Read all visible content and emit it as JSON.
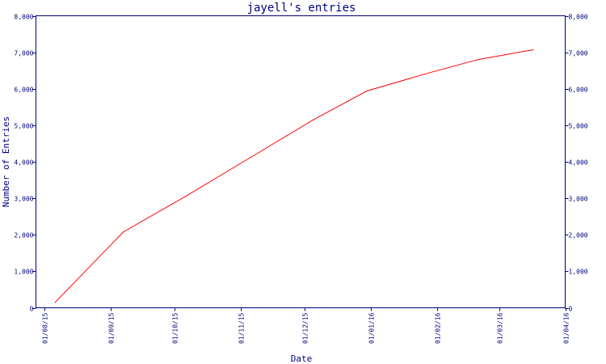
{
  "chart_data": {
    "type": "line",
    "title": "jayell's entries",
    "xlabel": "Date",
    "ylabel": "Number of Entries",
    "y_ticks": [
      {
        "value": 0,
        "label": "0"
      },
      {
        "value": 1000,
        "label": "1,000"
      },
      {
        "value": 2000,
        "label": "2,000"
      },
      {
        "value": 3000,
        "label": "3,000"
      },
      {
        "value": 4000,
        "label": "4,000"
      },
      {
        "value": 5000,
        "label": "5,000"
      },
      {
        "value": 6000,
        "label": "6,000"
      },
      {
        "value": 7000,
        "label": "7,000"
      },
      {
        "value": 8000,
        "label": "8,000"
      }
    ],
    "ylim": [
      0,
      8000
    ],
    "x_ticks": [
      {
        "value": "2015-08-01",
        "label": "01/08/15"
      },
      {
        "value": "2015-09-01",
        "label": "01/09/15"
      },
      {
        "value": "2015-10-01",
        "label": "01/10/15"
      },
      {
        "value": "2015-11-01",
        "label": "01/11/15"
      },
      {
        "value": "2015-12-01",
        "label": "01/12/15"
      },
      {
        "value": "2016-01-01",
        "label": "01/01/16"
      },
      {
        "value": "2016-02-01",
        "label": "01/02/16"
      },
      {
        "value": "2016-03-01",
        "label": "01/03/16"
      },
      {
        "value": "2016-04-01",
        "label": "01/04/16"
      }
    ],
    "xlim": [
      "2015-07-28",
      "2016-04-01"
    ],
    "grid": false,
    "right_axis_mirror": true,
    "series": [
      {
        "color": "#ff0000",
        "points": [
          {
            "x": "2015-08-06",
            "y": 150
          },
          {
            "x": "2015-09-07",
            "y": 2080
          },
          {
            "x": "2015-10-06",
            "y": 3050
          },
          {
            "x": "2015-11-05",
            "y": 4100
          },
          {
            "x": "2015-12-05",
            "y": 5150
          },
          {
            "x": "2015-12-30",
            "y": 5940
          },
          {
            "x": "2016-01-26",
            "y": 6400
          },
          {
            "x": "2016-02-20",
            "y": 6800
          },
          {
            "x": "2016-03-17",
            "y": 7070
          }
        ]
      }
    ]
  }
}
